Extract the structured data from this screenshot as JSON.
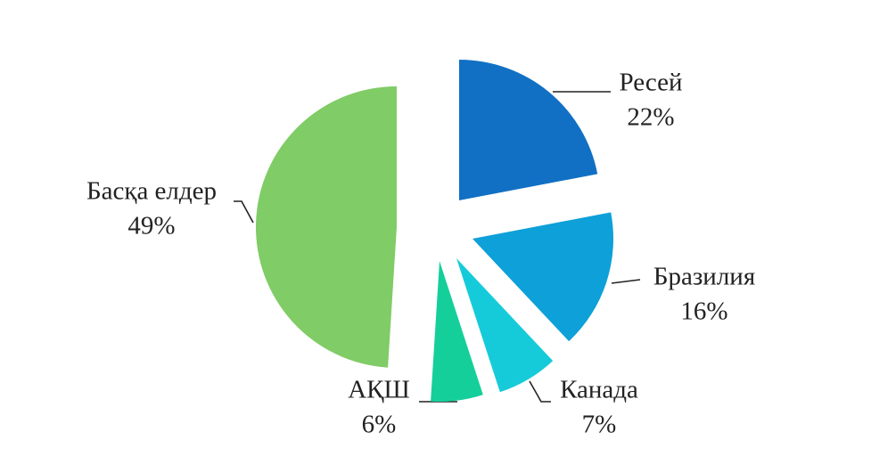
{
  "chart_data": {
    "type": "pie",
    "categories": [
      "Ресей",
      "Бразилия",
      "Канада",
      "АҚШ",
      "Басқа елдер"
    ],
    "values": [
      22,
      16,
      7,
      6,
      49
    ],
    "value_labels": [
      "22%",
      "16%",
      "7%",
      "6%",
      "49%"
    ],
    "colors": [
      "#1170c4",
      "#0ea0d8",
      "#16cbd9",
      "#15cf9b",
      "#80cc66"
    ]
  }
}
